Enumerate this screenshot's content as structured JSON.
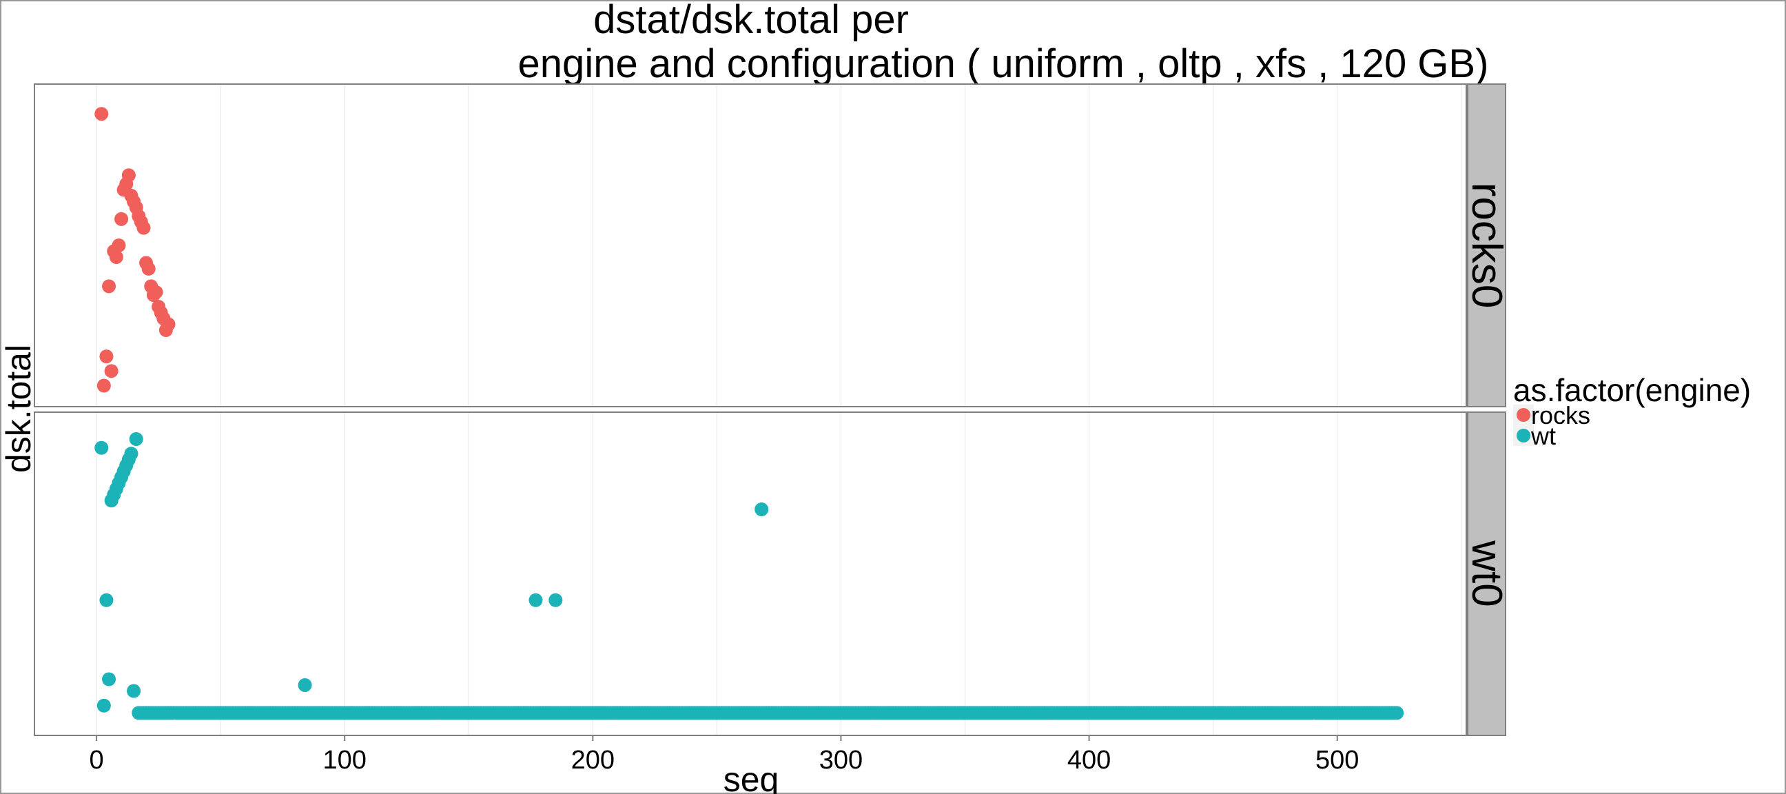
{
  "chart_data": {
    "type": "scatter",
    "title_line1": "dstat/dsk.total per",
    "title_line2": "engine and configuration ( uniform , oltp , xfs ,  120 GB)",
    "xlabel": "seq",
    "ylabel": "dsk.total",
    "xlim": [
      -25,
      552
    ],
    "x_ticks": [
      0,
      100,
      200,
      300,
      400,
      500
    ],
    "x_tick_labels": [
      "0",
      "100",
      "200",
      "300",
      "400",
      "500"
    ],
    "grid": true,
    "legend": {
      "title": "as.factor(engine)",
      "placement": "right",
      "entries": [
        {
          "label": "rocks",
          "color": "#F15F5B"
        },
        {
          "label": "wt",
          "color": "#1BB3B8"
        }
      ]
    },
    "panels": [
      {
        "strip": "rocks0",
        "series": "rocks",
        "color": "#F15F5B",
        "ylim": [
          0,
          1
        ],
        "points": [
          [
            2,
            0.95
          ],
          [
            3,
            0.02
          ],
          [
            4,
            0.12
          ],
          [
            5,
            0.36
          ],
          [
            6,
            0.07
          ],
          [
            7,
            0.48
          ],
          [
            8,
            0.46
          ],
          [
            9,
            0.5
          ],
          [
            10,
            0.59
          ],
          [
            11,
            0.69
          ],
          [
            12,
            0.71
          ],
          [
            13,
            0.74
          ],
          [
            14,
            0.67
          ],
          [
            15,
            0.65
          ],
          [
            16,
            0.63
          ],
          [
            17,
            0.6
          ],
          [
            18,
            0.58
          ],
          [
            19,
            0.56
          ],
          [
            20,
            0.44
          ],
          [
            21,
            0.42
          ],
          [
            22,
            0.36
          ],
          [
            23,
            0.33
          ],
          [
            24,
            0.34
          ],
          [
            25,
            0.29
          ],
          [
            26,
            0.27
          ],
          [
            27,
            0.25
          ],
          [
            28,
            0.21
          ],
          [
            29,
            0.23
          ]
        ]
      },
      {
        "strip": "wt0",
        "series": "wt",
        "color": "#1BB3B8",
        "ylim": [
          0,
          1
        ],
        "points": [
          [
            2,
            0.93
          ],
          [
            3,
            0.05
          ],
          [
            4,
            0.41
          ],
          [
            5,
            0.14
          ],
          [
            6,
            0.75
          ],
          [
            7,
            0.77
          ],
          [
            8,
            0.79
          ],
          [
            9,
            0.81
          ],
          [
            10,
            0.83
          ],
          [
            11,
            0.85
          ],
          [
            12,
            0.87
          ],
          [
            13,
            0.89
          ],
          [
            14,
            0.91
          ],
          [
            15,
            0.1
          ],
          [
            16,
            0.96
          ],
          [
            84,
            0.12
          ],
          [
            177,
            0.41
          ],
          [
            185,
            0.41
          ],
          [
            268,
            0.72
          ]
        ],
        "baseline": {
          "x_start": 17,
          "x_end": 524,
          "y": 0.025
        }
      }
    ]
  }
}
